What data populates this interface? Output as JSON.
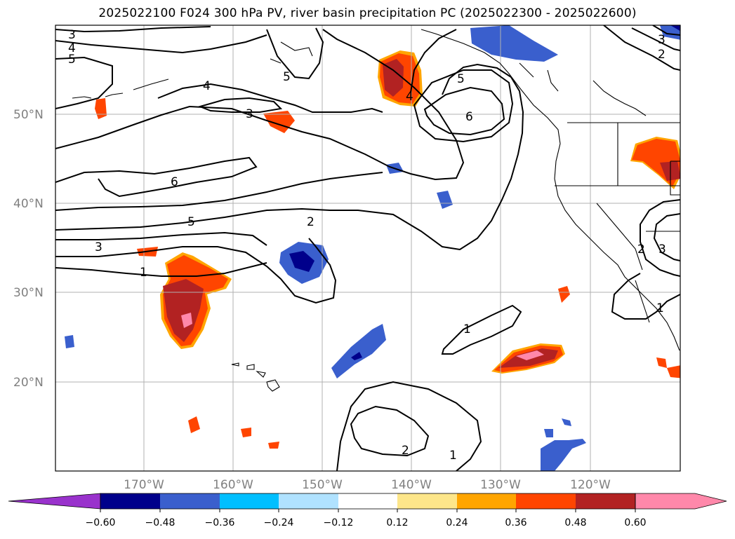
{
  "title": "2025022100 F024 300 hPa PV, river basin precipitation PC (2025022300 - 2025022600)",
  "lat_labels": [
    "50°N",
    "40°N",
    "30°N",
    "20°N"
  ],
  "lon_labels": [
    "170°W",
    "160°W",
    "150°W",
    "140°W",
    "130°W",
    "120°W"
  ],
  "contour_labels": {
    "nw_3": "3",
    "nw_4": "4",
    "nw_5": "5",
    "mid_5": "5",
    "mid_4": "4",
    "mid_3": "3",
    "low_6": "6",
    "low_5": "5",
    "low_3": "3",
    "low_1": "1",
    "ridge_2": "2",
    "high_5": "5",
    "high_6": "6",
    "high_4": "4",
    "ne_3": "3",
    "ne_2": "2",
    "se_3": "3",
    "se_2": "2",
    "se_1": "1",
    "trop_1": "1",
    "south_2": "2",
    "south_1": "1"
  },
  "colorbar": {
    "ticks": [
      "−0.60",
      "−0.48",
      "−0.36",
      "−0.24",
      "−0.12",
      "0.12",
      "0.24",
      "0.36",
      "0.48",
      "0.60"
    ],
    "colors": [
      "#9932cc",
      "#00008b",
      "#3a5fcd",
      "#00bfff",
      "#b0e2ff",
      "#ffffff",
      "#fde68a",
      "#ffa500",
      "#ff4500",
      "#b22222",
      "#ff88aa"
    ]
  },
  "colors": {
    "neg_strong": "#00008b",
    "neg_mid": "#3a5fcd",
    "neg_light": "#00bfff",
    "pos_light": "#fde68a",
    "pos_mid": "#ffa500",
    "pos_strong": "#ff4500",
    "pos_dark": "#b22222",
    "pos_max": "#ff88aa",
    "grid": "#b0b0b0"
  }
}
